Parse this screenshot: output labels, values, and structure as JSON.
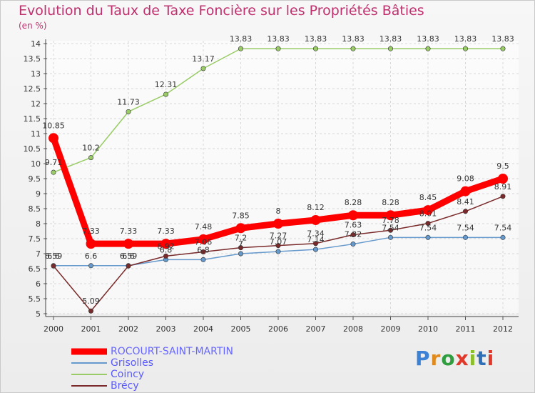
{
  "title": "Evolution du Taux de Taxe Foncière sur les Propriétés Bâties",
  "unit": "(en %)",
  "logo": {
    "text": "Proxiti",
    "colors": [
      "#3b82d6",
      "#e08a1e",
      "#2f9e3f",
      "#e0392b",
      "#8cbf2a",
      "#2f6fb5",
      "#e0392b"
    ]
  },
  "chart_data": {
    "type": "line",
    "title": "Evolution du Taux de Taxe Foncière sur les Propriétés Bâties",
    "ylabel": "(en %)",
    "xlabel": "",
    "ylim": [
      5,
      14
    ],
    "yticks": [
      "5",
      "5.5",
      "6",
      "6.5",
      "7",
      "7.5",
      "8",
      "8.5",
      "9",
      "9.5",
      "10",
      "10.5",
      "11",
      "11.5",
      "12",
      "12.5",
      "13",
      "13.5",
      "14"
    ],
    "x": [
      "2000",
      "2001",
      "2002",
      "2003",
      "2004",
      "2005",
      "2006",
      "2007",
      "2008",
      "2009",
      "2010",
      "2011",
      "2012"
    ],
    "grid": true,
    "legend_position": "bottom-left",
    "series": [
      {
        "name": "ROCOURT-SAINT-MARTIN",
        "color": "#ff0000",
        "width": 9,
        "values": [
          10.85,
          7.33,
          7.33,
          7.33,
          7.48,
          7.85,
          8,
          8.12,
          8.28,
          8.28,
          8.45,
          9.08,
          9.5
        ],
        "labels": [
          "10.85",
          "7.33",
          "7.33",
          "7.33",
          "7.48",
          "7.85",
          "8",
          "8.12",
          "8.28",
          "8.28",
          "8.45",
          "9.08",
          "9.5"
        ]
      },
      {
        "name": "Grisolles",
        "color": "#6699cc",
        "width": 1.5,
        "values": [
          6.6,
          6.6,
          6.6,
          6.8,
          6.8,
          7,
          7.07,
          7.14,
          7.32,
          7.54,
          7.54,
          7.54,
          7.54
        ],
        "labels": [
          "6.6",
          "6.6",
          "6.6",
          "6.8",
          "6.8",
          "7",
          "7.07",
          "7.14",
          "7.32",
          "7.54",
          "7.54",
          "7.54",
          "7.54"
        ]
      },
      {
        "name": "Coincy",
        "color": "#99cc66",
        "width": 1.5,
        "values": [
          9.71,
          10.2,
          11.73,
          12.31,
          13.17,
          13.83,
          13.83,
          13.83,
          13.83,
          13.83,
          13.83,
          13.83,
          13.83
        ],
        "labels": [
          "9.71",
          "10.2",
          "11.73",
          "12.31",
          "13.17",
          "13.83",
          "13.83",
          "13.83",
          "13.83",
          "13.83",
          "13.83",
          "13.83",
          "13.83"
        ]
      },
      {
        "name": "Brécy",
        "color": "#7a2a2a",
        "width": 1.5,
        "values": [
          6.59,
          5.09,
          6.59,
          6.92,
          7.06,
          7.2,
          7.27,
          7.34,
          7.63,
          7.78,
          8.01,
          8.41,
          8.91
        ],
        "labels": [
          "6.59",
          "5.09",
          "6.59",
          "6.92",
          "7.06",
          "7.2",
          "7.27",
          "7.34",
          "7.63",
          "7.78",
          "8.01",
          "8.41",
          "8.91"
        ]
      }
    ]
  }
}
